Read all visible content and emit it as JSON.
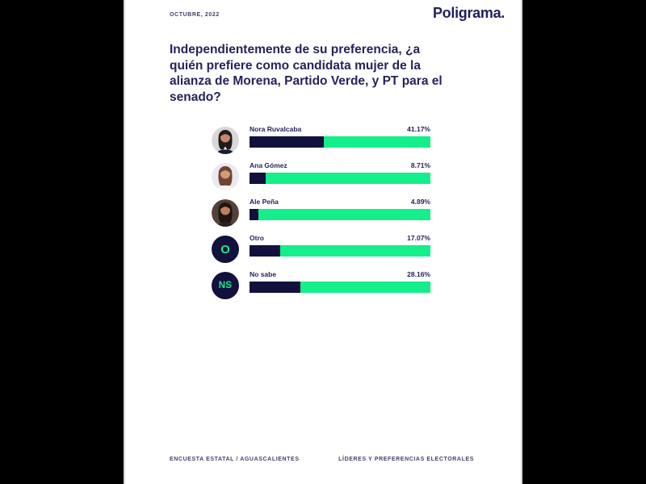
{
  "header": {
    "date": "OCTUBRE, 2022",
    "logo": "Poligrama."
  },
  "question": {
    "full": "Independientemente de su preferencia, ¿a quién prefiere como candidata mujer de la alianza de Morena, Partido Verde, y PT para el senado?",
    "lines": [
      "Independientemente de su preferencia, ¿a",
      "quién prefiere como candidata mujer de la",
      "alianza de Morena, Partido Verde, y PT para el",
      "senado?"
    ]
  },
  "footer": {
    "left": "ENCUESTA ESTATAL / AGUASCALIENTES",
    "right": "LÍDERES Y PREFERENCIAS ELECTORALES"
  },
  "colors": {
    "navy_text": "#26235B",
    "bar_fill_navy": "#12103D",
    "bar_track_green": "#14EE8B",
    "card_background": "#FFFFFF",
    "page_background": "#000000"
  },
  "chart_data": {
    "type": "bar",
    "orientation": "horizontal",
    "title": "Independientemente de su preferencia, ¿a quién prefiere como candidata mujer de la alianza de Morena, Partido Verde, y PT para el senado?",
    "categories": [
      "Nora Ruvalcaba",
      "Ana Gómez",
      "Ale Peña",
      "Otro",
      "No sabe"
    ],
    "values": [
      41.17,
      8.71,
      4.89,
      17.07,
      28.16
    ],
    "value_labels": [
      "41.17%",
      "8.71%",
      "4.89%",
      "17.07%",
      "28.16%"
    ],
    "xlim": [
      0,
      100
    ],
    "grid": false,
    "legend": false,
    "bar_colors": {
      "filled": "#12103D",
      "remainder": "#14EE8B"
    },
    "avatars": [
      {
        "type": "photo"
      },
      {
        "type": "photo"
      },
      {
        "type": "photo"
      },
      {
        "type": "initials",
        "text": "O"
      },
      {
        "type": "initials",
        "text": "NS"
      }
    ]
  }
}
